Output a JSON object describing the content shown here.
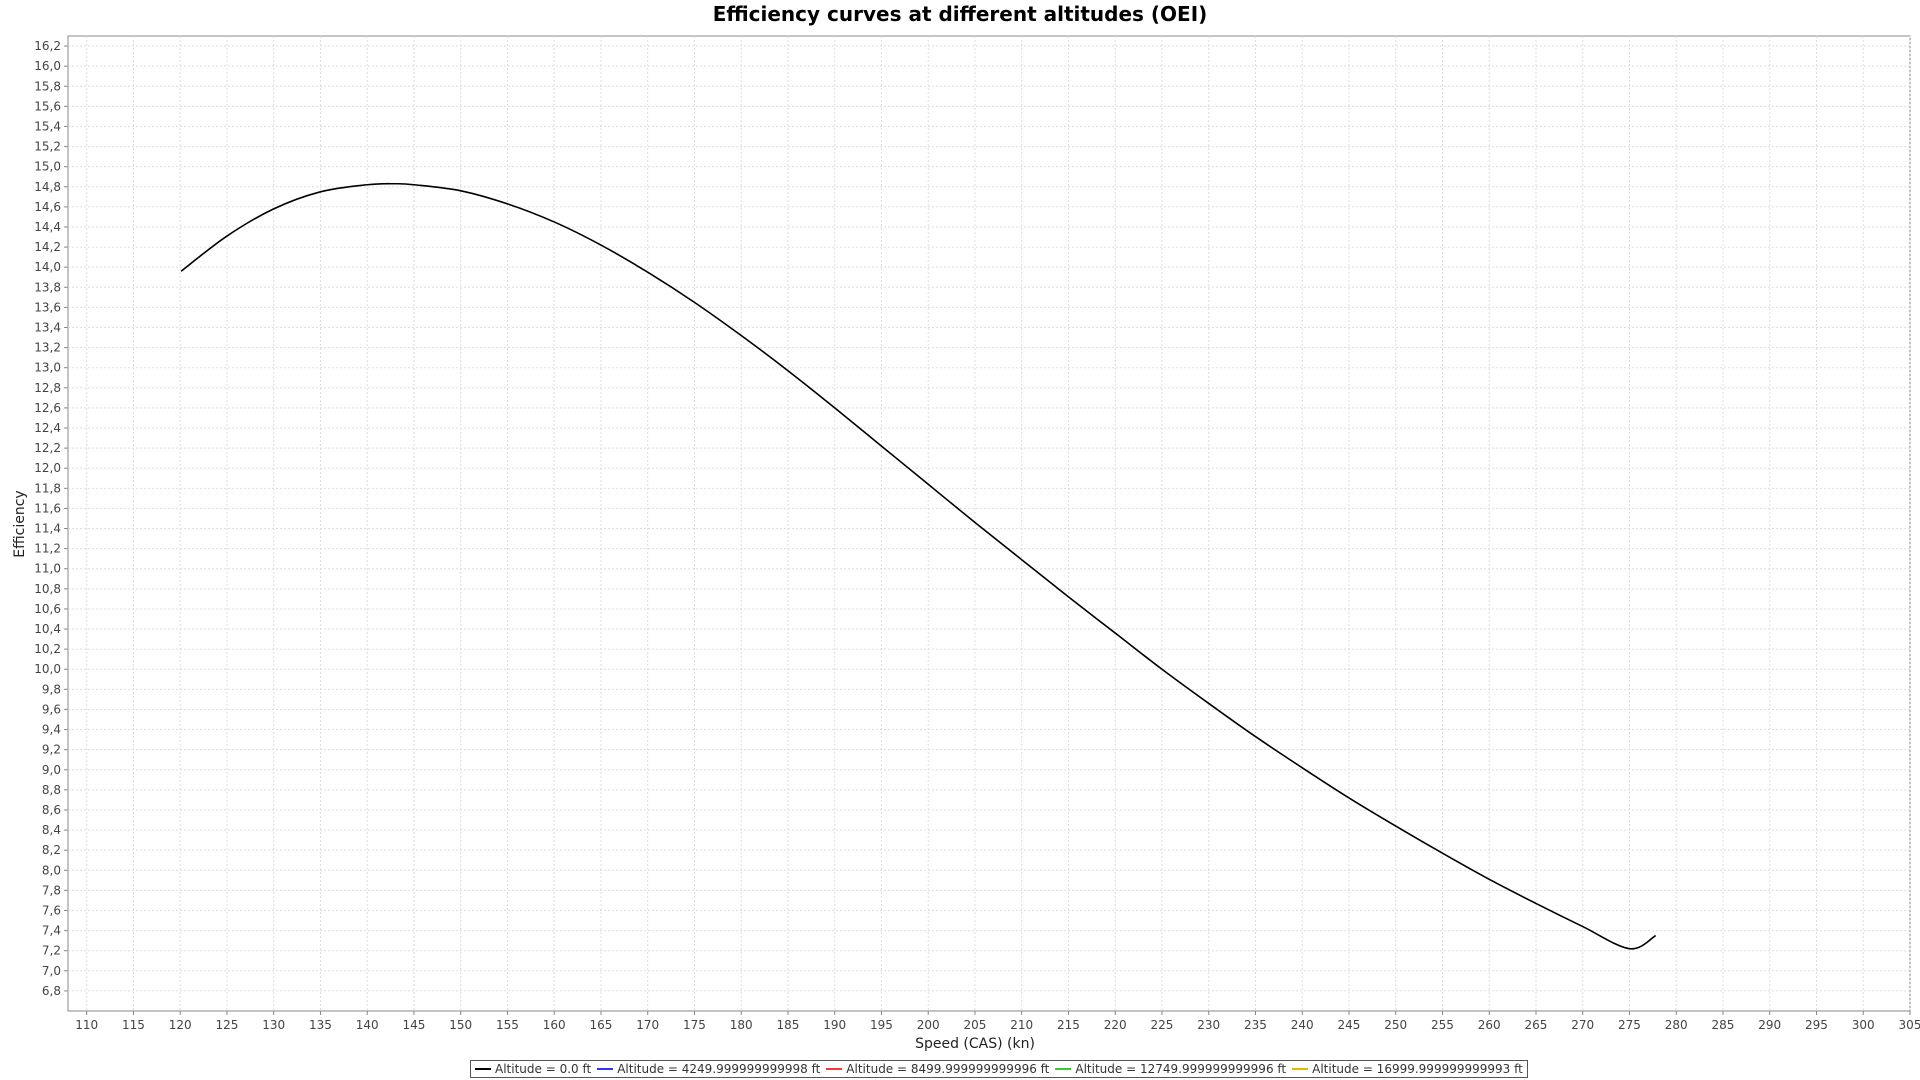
{
  "chart_data": {
    "type": "line",
    "title": "Efficiency curves at different altitudes (OEI)",
    "xlabel": "Speed (CAS) (kn)",
    "ylabel": "Efficiency",
    "xlim": [
      108,
      305
    ],
    "ylim": [
      6.6,
      16.3
    ],
    "x_ticks": [
      "110",
      "115",
      "120",
      "125",
      "130",
      "135",
      "140",
      "145",
      "150",
      "155",
      "160",
      "165",
      "170",
      "175",
      "180",
      "185",
      "190",
      "195",
      "200",
      "205",
      "210",
      "215",
      "220",
      "225",
      "230",
      "235",
      "240",
      "245",
      "250",
      "255",
      "260",
      "265",
      "270",
      "275",
      "280",
      "285",
      "290",
      "295",
      "300",
      "305"
    ],
    "y_ticks": [
      "6,8",
      "7,0",
      "7,2",
      "7,4",
      "7,6",
      "7,8",
      "8,0",
      "8,2",
      "8,4",
      "8,6",
      "8,8",
      "9,0",
      "9,2",
      "9,4",
      "9,6",
      "9,8",
      "10,0",
      "10,2",
      "10,4",
      "10,6",
      "10,8",
      "11,0",
      "11,2",
      "11,4",
      "11,6",
      "11,8",
      "12,0",
      "12,2",
      "12,4",
      "12,6",
      "12,8",
      "13,0",
      "13,2",
      "13,4",
      "13,6",
      "13,8",
      "14,0",
      "14,2",
      "14,4",
      "14,6",
      "14,8",
      "15,0",
      "15,2",
      "15,4",
      "15,6",
      "15,8",
      "16,0",
      "16,2"
    ],
    "grid": true,
    "legend_position": "bottom",
    "series": [
      {
        "name": "Altitude = 0.0 ft",
        "color": "#000000",
        "x": [
          120.1,
          125,
          130,
          135,
          140,
          143,
          145,
          150,
          155,
          160,
          165,
          170,
          175,
          180,
          185,
          190,
          195,
          200,
          205,
          210,
          215,
          220,
          225,
          230,
          235,
          240,
          245,
          250,
          255,
          260,
          265,
          270,
          275,
          277.8
        ],
        "y": [
          13.96,
          14.31,
          14.58,
          14.75,
          14.82,
          14.83,
          14.82,
          14.76,
          14.63,
          14.45,
          14.22,
          13.95,
          13.65,
          13.32,
          12.97,
          12.6,
          12.22,
          11.84,
          11.46,
          11.09,
          10.72,
          10.36,
          10.0,
          9.66,
          9.33,
          9.02,
          8.72,
          8.44,
          8.17,
          7.91,
          7.67,
          7.44,
          7.22,
          7.35
        ]
      },
      {
        "name": "Altitude = 4249.999999999998 ft",
        "color": "#3333ff",
        "x": [],
        "y": []
      },
      {
        "name": "Altitude = 8499.999999999996 ft",
        "color": "#ff3333",
        "x": [],
        "y": []
      },
      {
        "name": "Altitude = 12749.999999999996 ft",
        "color": "#33cc33",
        "x": [],
        "y": []
      },
      {
        "name": "Altitude = 16999.999999999993 ft",
        "color": "#e6b800",
        "x": [],
        "y": []
      }
    ]
  }
}
